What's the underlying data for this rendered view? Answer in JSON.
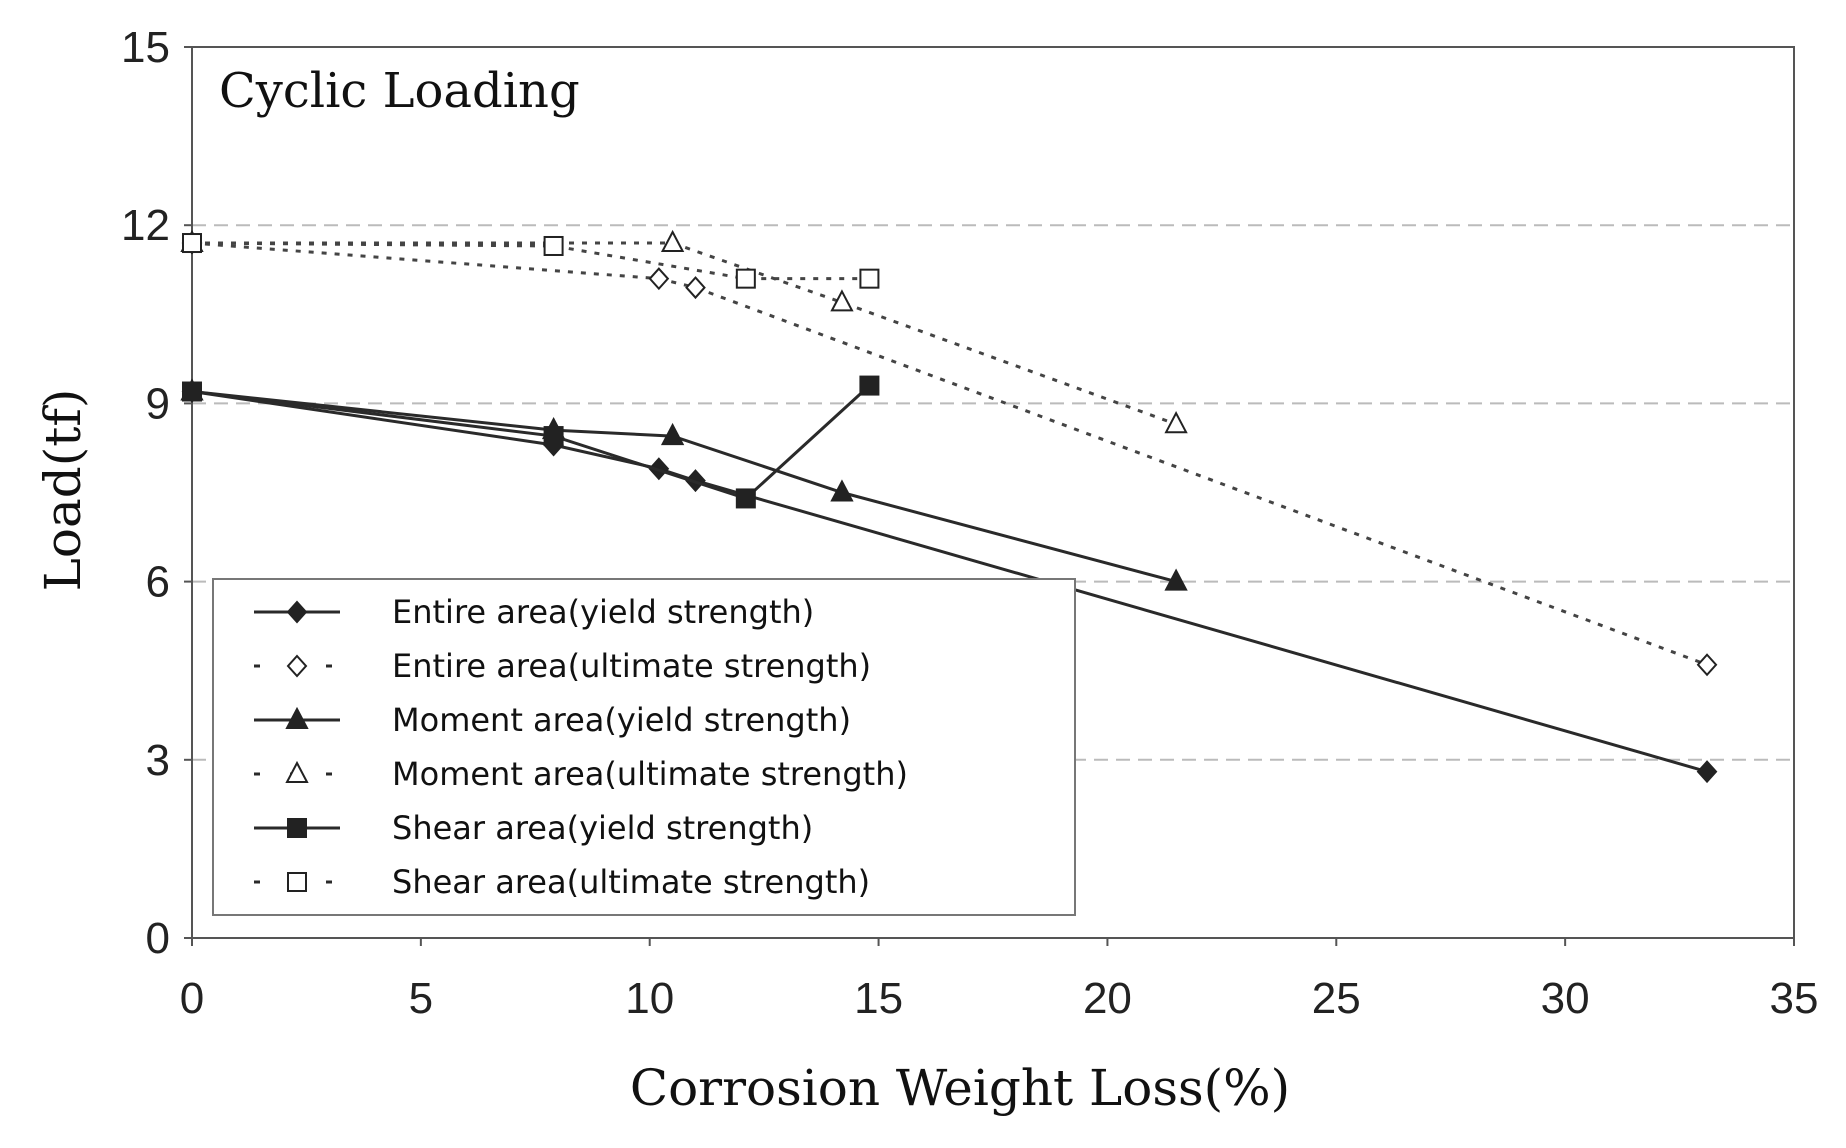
{
  "chart_data": {
    "type": "line",
    "title": "Cyclic Loading",
    "xlabel": "Corrosion Weight Loss(%)",
    "ylabel": "Load(tf)",
    "xlim": [
      0,
      35
    ],
    "ylim": [
      0,
      15
    ],
    "xticks": [
      "0",
      "5",
      "10",
      "15",
      "20",
      "25",
      "30",
      "35"
    ],
    "yticks": [
      "0",
      "3",
      "6",
      "9",
      "12",
      "15"
    ],
    "grid": "horizontal dashed",
    "legend_position": "lower-left",
    "series": [
      {
        "name": "Entire area(yield strength)",
        "style": "solid",
        "marker": "diamond-filled",
        "x": [
          0,
          7.9,
          10.2,
          11.0,
          33.1
        ],
        "y": [
          9.2,
          8.3,
          7.9,
          7.7,
          2.8
        ]
      },
      {
        "name": "Entire area(ultimate strength)",
        "style": "dotted",
        "marker": "diamond-open",
        "x": [
          0,
          10.2,
          11.0,
          33.1
        ],
        "y": [
          11.7,
          11.1,
          10.95,
          4.6
        ]
      },
      {
        "name": "Moment area(yield strength)",
        "style": "solid",
        "marker": "triangle-filled",
        "x": [
          0,
          7.9,
          10.5,
          14.2,
          21.5
        ],
        "y": [
          9.2,
          8.55,
          8.45,
          7.5,
          6.0
        ]
      },
      {
        "name": "Moment area(ultimate strength)",
        "style": "dotted",
        "marker": "triangle-open",
        "x": [
          0,
          10.5,
          14.2,
          21.5
        ],
        "y": [
          11.7,
          11.7,
          10.7,
          8.65
        ]
      },
      {
        "name": "Shear area(yield strength)",
        "style": "solid",
        "marker": "square-filled",
        "x": [
          0,
          7.9,
          12.1,
          14.8
        ],
        "y": [
          9.2,
          8.45,
          7.4,
          9.3
        ]
      },
      {
        "name": "Shear area(ultimate strength)",
        "style": "dotted",
        "marker": "square-open",
        "x": [
          0,
          7.9,
          12.1,
          14.8
        ],
        "y": [
          11.7,
          11.65,
          11.1,
          11.1
        ]
      }
    ]
  }
}
